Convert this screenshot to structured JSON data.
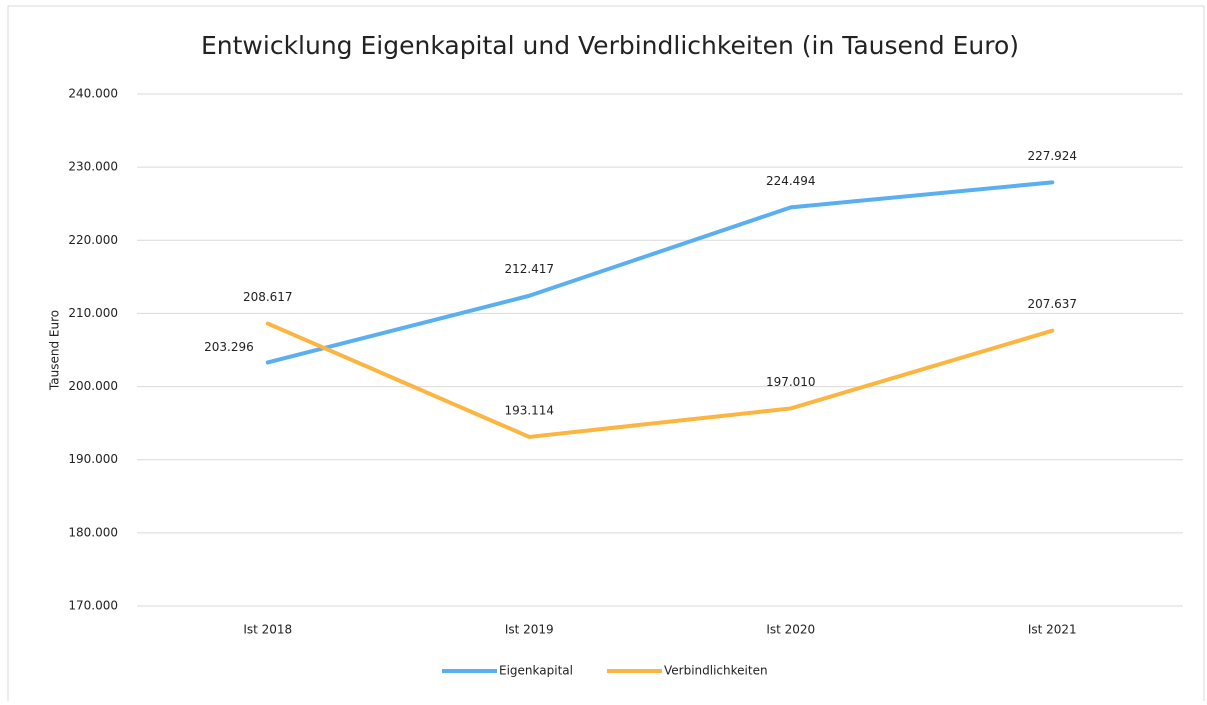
{
  "chart_data": {
    "type": "line",
    "title": "Entwicklung Eigenkapital und Verbindlichkeiten (in Tausend Euro)",
    "y_label": "Tausend Euro",
    "categories": [
      "Ist 2018",
      "Ist 2019",
      "Ist 2020",
      "Ist 2021"
    ],
    "series": [
      {
        "name": "Eigenkapital",
        "color": "#5aaff0",
        "values": [
          203296,
          212417,
          224494,
          227924
        ],
        "value_labels": [
          "203.296",
          "212.417",
          "224.494",
          "227.924"
        ]
      },
      {
        "name": "Verbindlichkeiten",
        "color": "#fbb540",
        "values": [
          208617,
          193114,
          197010,
          207637
        ],
        "value_labels": [
          "208.617",
          "193.114",
          "197.010",
          "207.637"
        ]
      }
    ],
    "ylim": [
      170000,
      240000
    ],
    "yticks": [
      {
        "value": 170000,
        "label": "170.000"
      },
      {
        "value": 180000,
        "label": "180.000"
      },
      {
        "value": 190000,
        "label": "190.000"
      },
      {
        "value": 200000,
        "label": "200.000"
      },
      {
        "value": 210000,
        "label": "210.000"
      },
      {
        "value": 220000,
        "label": "220.000"
      },
      {
        "value": 230000,
        "label": "230.000"
      },
      {
        "value": 240000,
        "label": "240.000"
      }
    ],
    "grid": true,
    "legend": "bottom"
  }
}
